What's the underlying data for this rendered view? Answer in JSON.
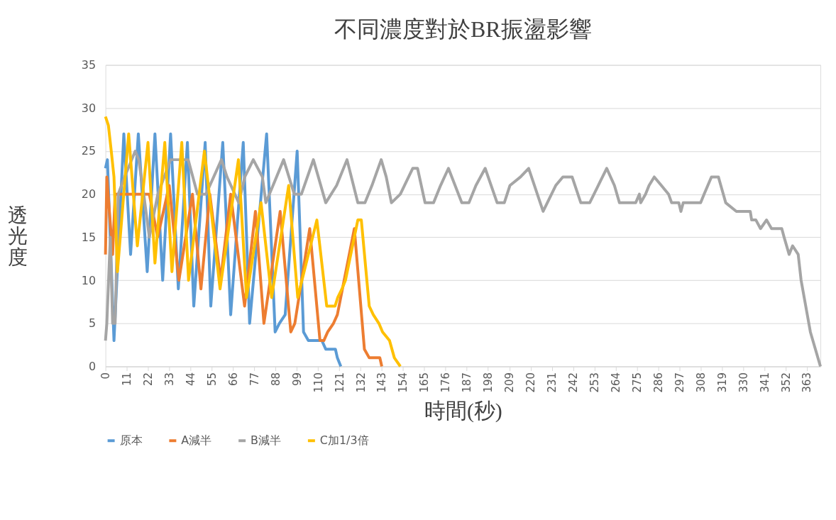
{
  "chart_data": {
    "type": "line",
    "title": "不同濃度對於BR振盪影響",
    "xlabel": "時間(秒)",
    "ylabel": "透光度",
    "xlim": [
      0,
      370
    ],
    "xticks": [
      0,
      11,
      22,
      33,
      44,
      55,
      66,
      77,
      88,
      99,
      110,
      121,
      132,
      143,
      154,
      165,
      176,
      187,
      198,
      209,
      220,
      231,
      242,
      253,
      264,
      275,
      286,
      297,
      308,
      319,
      330,
      341,
      352,
      363
    ],
    "ylim": [
      0,
      35
    ],
    "yticks": [
      0,
      5,
      10,
      15,
      20,
      25,
      30,
      35
    ],
    "grid": "y",
    "legend": "bottom",
    "marker": "none",
    "line_style": "solid",
    "series": [
      {
        "name": "原本",
        "color": "#5b9bd5",
        "x": [
          0,
          1,
          4.4,
          9.5,
          13,
          17,
          21.6,
          25.6,
          29.6,
          33.7,
          37.7,
          42.4,
          45.7,
          51.6,
          54.5,
          60.7,
          64.8,
          71.3,
          74.6,
          83.4,
          87.8,
          90,
          93,
          99.2,
          102.5,
          105,
          112,
          114,
          119,
          120,
          121.8
        ],
        "values": [
          23,
          24,
          3,
          27,
          13,
          27,
          11,
          27,
          10,
          27,
          9,
          26,
          7,
          26,
          7,
          26,
          6,
          26,
          5,
          27,
          4,
          5,
          6,
          25,
          4,
          3,
          3,
          2,
          2,
          1,
          0
        ]
      },
      {
        "name": "A減半",
        "color": "#ed7d31",
        "x": [
          0,
          0.7,
          3.7,
          5,
          22.7,
          27,
          33,
          38,
          45,
          49.4,
          54,
          59.6,
          64.8,
          72,
          77.6,
          82,
          90.4,
          95.9,
          98,
          105.7,
          111,
          113,
          115,
          118,
          120,
          128.8,
          134,
          136.5,
          142,
          143
        ],
        "values": [
          13,
          22,
          13,
          20,
          20,
          15,
          21,
          10,
          20,
          9,
          20,
          10,
          20,
          7,
          18,
          5,
          18,
          4,
          5,
          16,
          3,
          3,
          4,
          5,
          6,
          16,
          2,
          1,
          1,
          0
        ]
      },
      {
        "name": "B減半",
        "color": "#a5a5a5",
        "x": [
          0,
          0.7,
          2.5,
          3.7,
          5,
          6.6,
          9.9,
          15.4,
          17.2,
          19.8,
          22.7,
          27.1,
          33.7,
          42.8,
          47.6,
          52,
          60,
          62.9,
          69,
          72.1,
          76.5,
          81.2,
          83,
          86.7,
          92.2,
          97.7,
          101.4,
          107.6,
          114,
          119.6,
          125,
          130.6,
          134.3,
          137.9,
          142.7,
          145.3,
          148,
          152.6,
          159,
          161.5,
          165.4,
          169.8,
          173.4,
          177.5,
          184.4,
          188.1,
          191.7,
          196.5,
          202.7,
          206.4,
          209.3,
          214.8,
          219,
          225,
          226.5,
          233,
          236.7,
          241.5,
          246,
          250.6,
          255,
          259.4,
          263.4,
          266,
          274.4,
          276.3,
          277,
          279.5,
          281.3,
          284,
          287.7,
          291.4,
          293,
          296.7,
          297.8,
          299,
          308,
          309.8,
          313.6,
          317.2,
          321,
          326.5,
          333.7,
          334.4,
          336.6,
          339,
          342.1,
          344.7,
          350,
          351.2,
          353.8,
          355.6,
          358.5,
          360,
          364.8,
          370
        ],
        "values": [
          3,
          5,
          15,
          5,
          5,
          20,
          22,
          25,
          24,
          20,
          15,
          20,
          24,
          24,
          20,
          20,
          24,
          22,
          19,
          22,
          24,
          22,
          19,
          21,
          24,
          20,
          20,
          24,
          19,
          21,
          24,
          19,
          19,
          21,
          24,
          22,
          19,
          20,
          23,
          23,
          19,
          19,
          21,
          23,
          19,
          19,
          21,
          23,
          19,
          19,
          21,
          22,
          23,
          19,
          18,
          21,
          22,
          22,
          19,
          19,
          21,
          23,
          21,
          19,
          19,
          20,
          19,
          20,
          21,
          22,
          21,
          20,
          19,
          19,
          18,
          19,
          19,
          20,
          22,
          22,
          19,
          18,
          18,
          17,
          17,
          16,
          17,
          16,
          16,
          15,
          13,
          14,
          13,
          10,
          4,
          0
        ]
      },
      {
        "name": "C加1/3倍",
        "color": "#ffc000",
        "x": [
          0,
          1.5,
          3,
          4.4,
          6.2,
          12,
          16.5,
          22,
          25.6,
          30.7,
          34.4,
          39.5,
          43,
          51.2,
          59.3,
          68.8,
          73,
          80.5,
          86,
          94.8,
          99.5,
          109.4,
          114.5,
          118.8,
          120.2,
          122.4,
          124.2,
          130.6,
          132.4,
          136.5,
          138.6,
          141.5,
          143.4,
          147,
          149.5,
          152.6
        ],
        "values": [
          29,
          28,
          25,
          22,
          11,
          27,
          14,
          26,
          12,
          26,
          11,
          26,
          10,
          25,
          9,
          24,
          8,
          19,
          8,
          21,
          8,
          17,
          7,
          7,
          8,
          9,
          10,
          17,
          17,
          7,
          6,
          5,
          4,
          3,
          1,
          0
        ]
      }
    ]
  }
}
